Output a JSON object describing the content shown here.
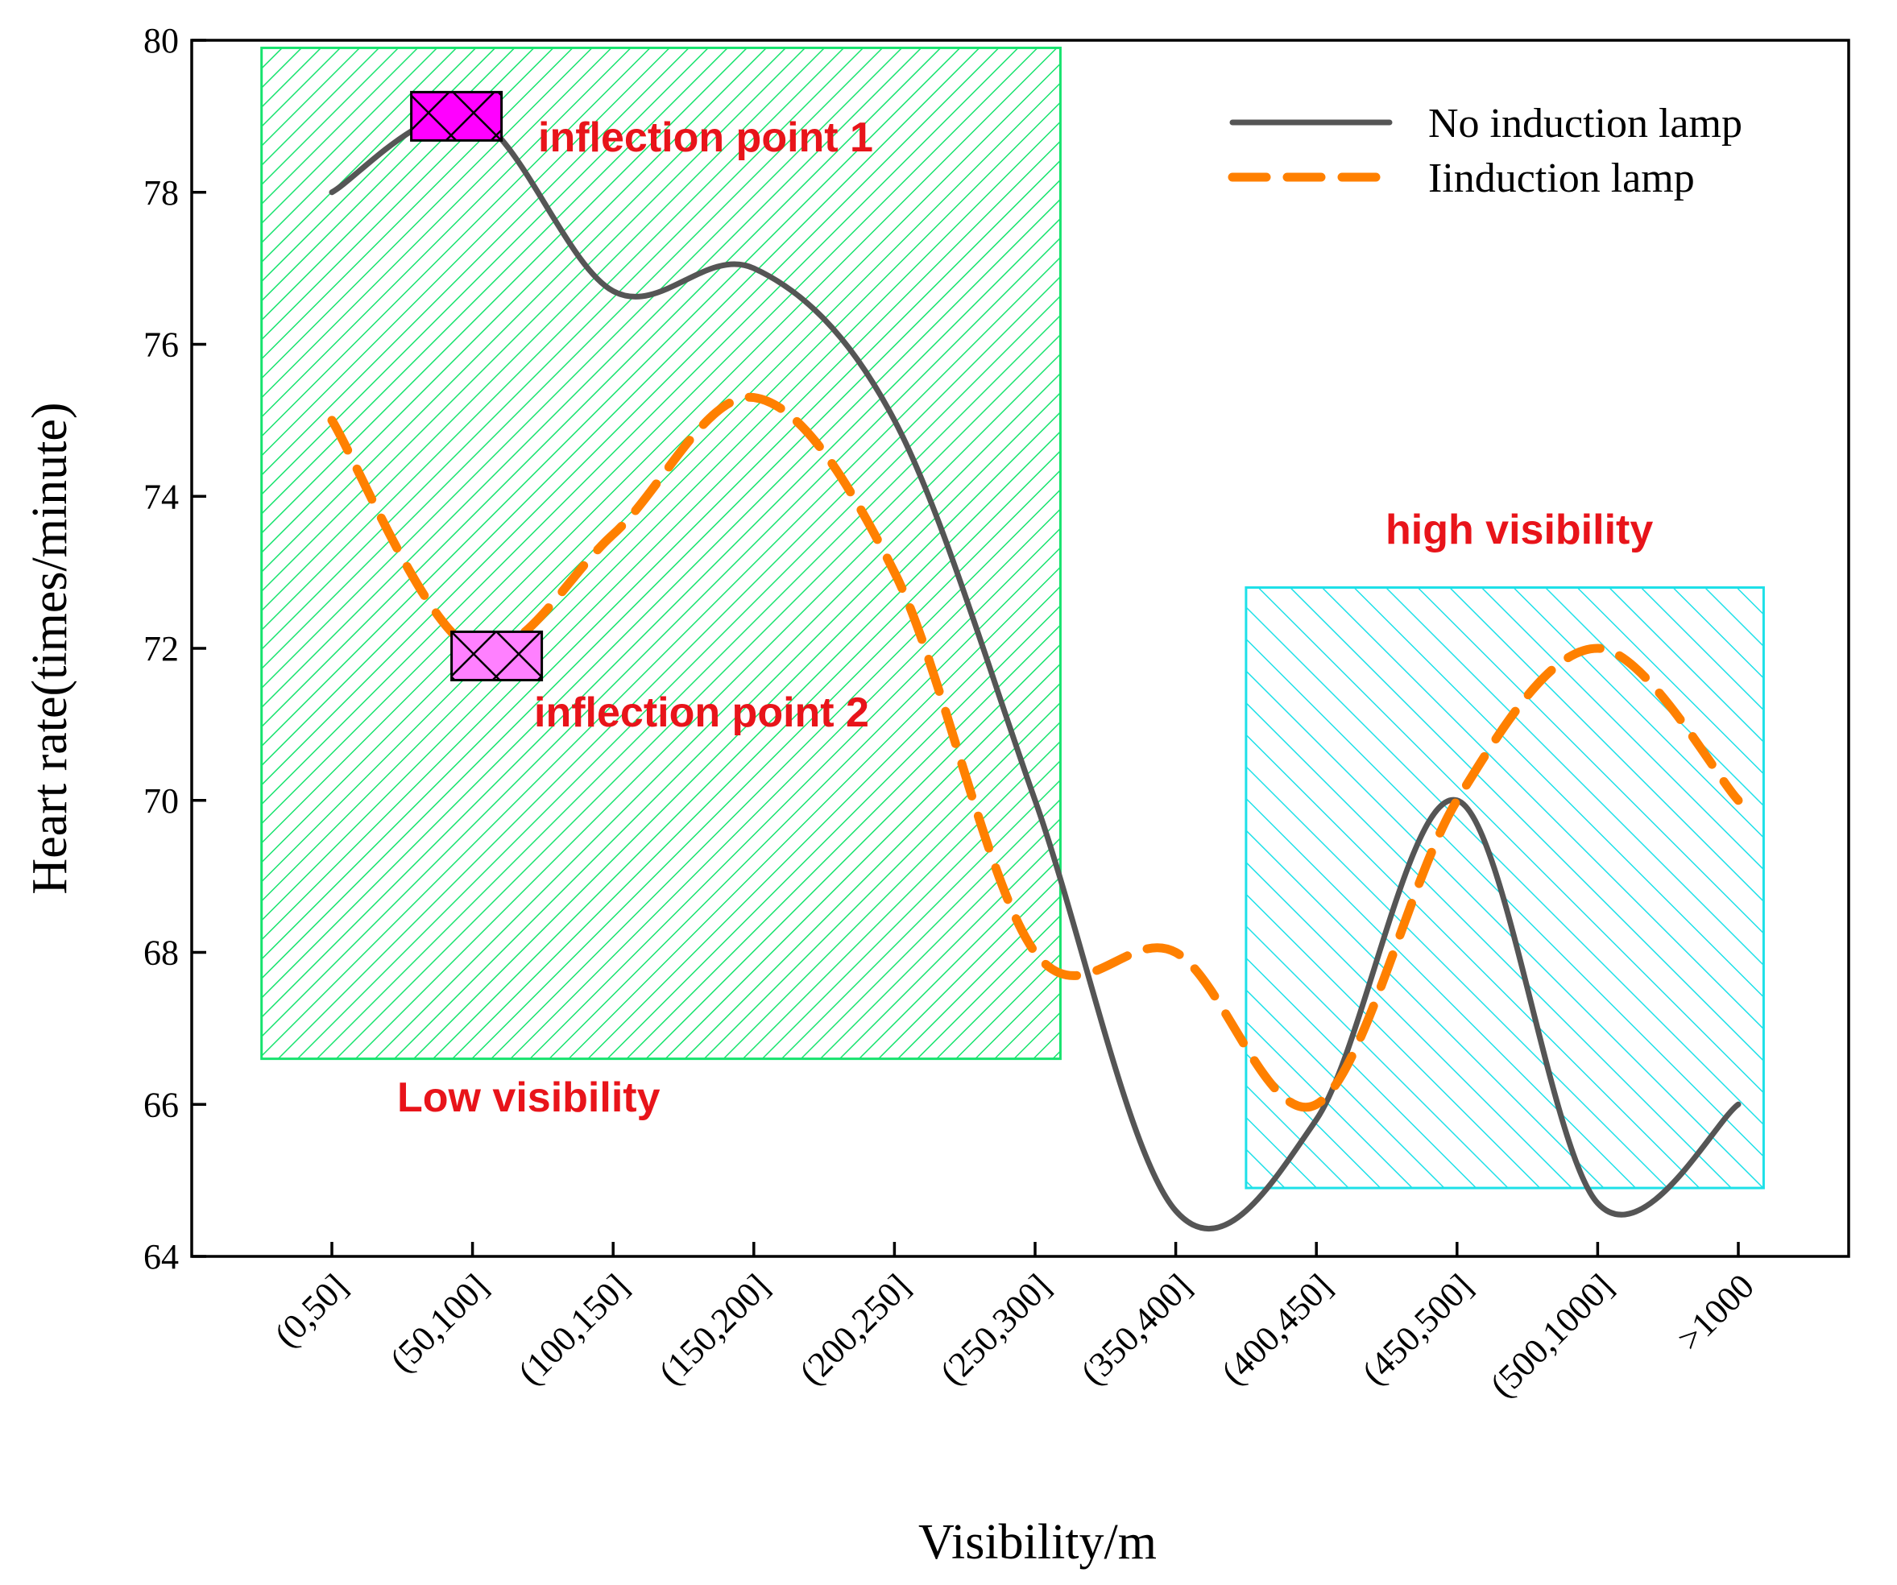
{
  "chart_data": {
    "type": "line",
    "xlabel": "Visibility/m",
    "ylabel": "Heart rate(times/minute)",
    "categories": [
      "(0,50]",
      "(50,100]",
      "(100,150]",
      "(150,200]",
      "(200,250]",
      "(250,300]",
      "(350,400]",
      "(400,450]",
      "(450,500]",
      "(500,1000]",
      ">1000"
    ],
    "ylim": [
      64,
      80
    ],
    "yticks": [
      64,
      66,
      68,
      70,
      72,
      74,
      76,
      78,
      80
    ],
    "legend_position": "top-right",
    "grid": false,
    "series": [
      {
        "name": "No induction lamp",
        "style": "solid",
        "color": "#555555",
        "values": [
          78,
          79,
          76.7,
          77,
          75,
          70,
          64.6,
          65.8,
          70,
          64.7,
          66
        ]
      },
      {
        "name": "Iinduction lamp",
        "style": "dashed",
        "color": "#ff8000",
        "values": [
          75,
          72,
          73.5,
          75.3,
          73,
          68,
          68,
          66,
          70,
          72,
          70
        ]
      }
    ],
    "regions": [
      {
        "label": "Low visibility",
        "x_from": "(0,50]",
        "x_to": "(250,300]",
        "y_from": 66.6,
        "y_to": 79.9,
        "color": "#17e36e"
      },
      {
        "label": "high visibility",
        "x_from": "(400,450]",
        "x_to": ">1000",
        "y_from": 64.9,
        "y_to": 72.8,
        "color": "#1ee0e8"
      }
    ],
    "annotations": [
      {
        "text": "inflection point 1",
        "x": "(50,100]",
        "y": 79,
        "color": "#ff00ff"
      },
      {
        "text": "inflection point 2",
        "x": "(50,100]",
        "y": 71.9,
        "color": "#ff80ff"
      }
    ]
  }
}
